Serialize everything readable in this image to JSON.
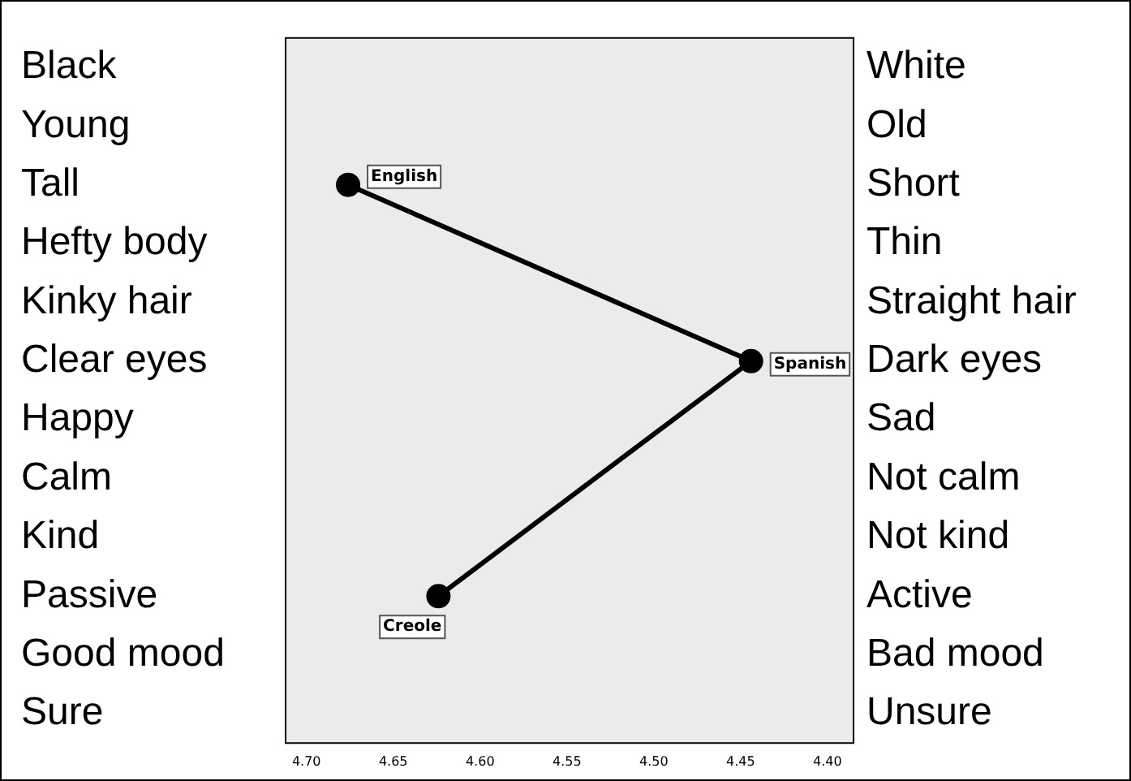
{
  "chart_data": {
    "type": "line",
    "orientation": "horizontal",
    "categories": [
      "Black",
      "Young",
      "Tall",
      "Hefty body",
      "Kinky hair",
      "Clear eyes",
      "Happy",
      "Calm",
      "Kind",
      "Passive",
      "Good mood",
      "Sure"
    ],
    "annotations": [
      "White",
      "Old",
      "Short",
      "Thin",
      "Straight hair",
      "Dark eyes",
      "Sad",
      "Not calm",
      "Not kind",
      "Active",
      "Bad mood",
      "Unsure"
    ],
    "series": [
      {
        "color": "#000000",
        "values": [
          null,
          null,
          4.676,
          null,
          null,
          4.444,
          null,
          null,
          null,
          4.624,
          null,
          null
        ],
        "value_labels": [
          null,
          null,
          "English",
          null,
          null,
          "Spanish",
          null,
          null,
          null,
          "Creole",
          null,
          null
        ]
      }
    ],
    "xlim": [
      4.712,
      4.385
    ],
    "xticks": [
      {
        "value": 4.7,
        "label": "4.70"
      },
      4.65,
      {
        "value": 4.6,
        "label": "4.60"
      },
      4.55,
      {
        "value": 4.5,
        "label": "4.50"
      },
      4.45,
      {
        "value": 4.4,
        "label": "4.40"
      }
    ],
    "marker": "circle",
    "line_style": "solid",
    "grid": false,
    "legend": false
  }
}
